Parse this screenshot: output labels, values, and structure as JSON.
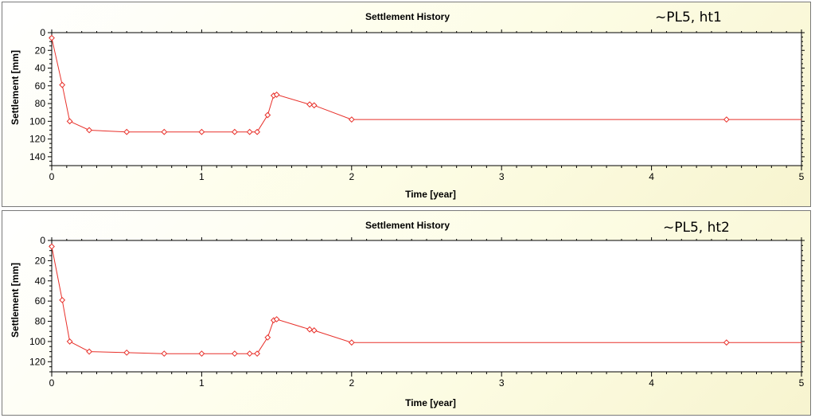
{
  "chart_data": [
    {
      "type": "line",
      "title": "Settlement History",
      "annotation": "~PL5, ht1",
      "xlabel": "Time [year]",
      "ylabel": "Settlement [mm]",
      "xlim": [
        0,
        5
      ],
      "ylim": [
        0,
        150
      ],
      "y_inverted": true,
      "x_ticks": [
        0,
        1,
        2,
        3,
        4,
        5
      ],
      "y_ticks": [
        0,
        20,
        40,
        60,
        80,
        100,
        120,
        140
      ],
      "grid": false,
      "line_color": "#e8302a",
      "marker": "diamond",
      "series": [
        {
          "x": [
            0.0,
            0.07,
            0.12,
            0.25,
            0.5,
            0.75,
            1.0,
            1.22,
            1.32,
            1.37,
            1.44,
            1.48,
            1.5,
            1.72,
            1.75,
            2.0,
            4.5,
            5.0
          ],
          "y": [
            6,
            59,
            100,
            110,
            112,
            112,
            112,
            112,
            112,
            112,
            93,
            71,
            70,
            81,
            82,
            98,
            98,
            98
          ]
        }
      ]
    },
    {
      "type": "line",
      "title": "Settlement History",
      "annotation": "~PL5, ht2",
      "xlabel": "Time [year]",
      "ylabel": "Settlement [mm]",
      "xlim": [
        0,
        5
      ],
      "ylim": [
        0,
        130
      ],
      "y_inverted": true,
      "x_ticks": [
        0,
        1,
        2,
        3,
        4,
        5
      ],
      "y_ticks": [
        0,
        20,
        40,
        60,
        80,
        100,
        120
      ],
      "grid": false,
      "line_color": "#e8302a",
      "marker": "diamond",
      "series": [
        {
          "x": [
            0.0,
            0.07,
            0.12,
            0.25,
            0.5,
            0.75,
            1.0,
            1.22,
            1.32,
            1.37,
            1.44,
            1.48,
            1.5,
            1.72,
            1.75,
            2.0,
            4.5,
            5.0
          ],
          "y": [
            6,
            59,
            100,
            110,
            111,
            112,
            112,
            112,
            112,
            112,
            96,
            79,
            78,
            88,
            89,
            101,
            101,
            101
          ]
        }
      ]
    }
  ]
}
